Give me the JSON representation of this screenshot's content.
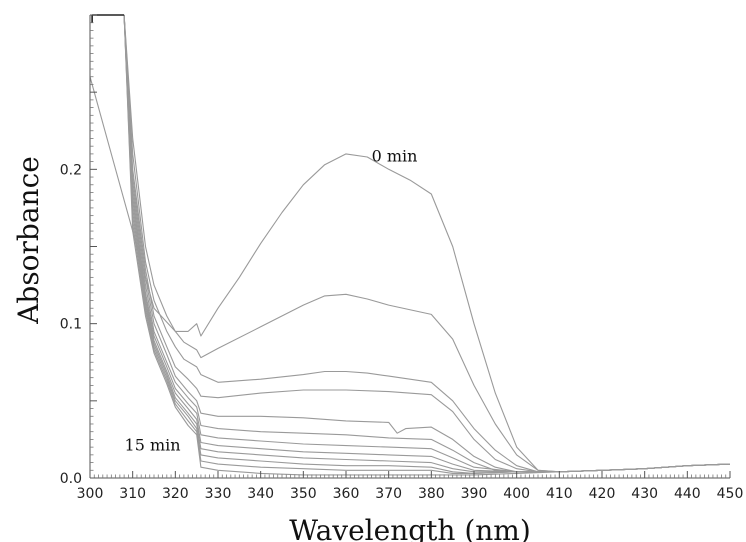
{
  "chart_data": {
    "type": "line",
    "title": "",
    "xlabel": "Wavelength (nm)",
    "ylabel": "Absorbance",
    "xlim": [
      300,
      450
    ],
    "ylim": [
      0,
      0.3
    ],
    "xticks": [
      "300",
      "310",
      "320",
      "330",
      "340",
      "350",
      "360",
      "370",
      "380",
      "390",
      "400",
      "410",
      "420",
      "430",
      "440",
      "450"
    ],
    "yticks": [
      "0.0",
      "0.1",
      "0.2"
    ],
    "grid": false,
    "legend": "none",
    "annotations": [
      {
        "text": "0 min",
        "x": 366,
        "y": 0.205
      },
      {
        "text": "15 min",
        "x": 302,
        "y": 0.021
      }
    ],
    "series": [
      {
        "label": "0 min",
        "points": [
          [
            300,
            0.26
          ],
          [
            305,
            0.21
          ],
          [
            310,
            0.16
          ],
          [
            315,
            0.11
          ],
          [
            320,
            0.095
          ],
          [
            323,
            0.095
          ],
          [
            325,
            0.1
          ],
          [
            326,
            0.092
          ],
          [
            330,
            0.11
          ],
          [
            335,
            0.13
          ],
          [
            340,
            0.152
          ],
          [
            345,
            0.172
          ],
          [
            350,
            0.19
          ],
          [
            355,
            0.203
          ],
          [
            360,
            0.21
          ],
          [
            365,
            0.208
          ],
          [
            370,
            0.2
          ],
          [
            375,
            0.193
          ],
          [
            380,
            0.184
          ],
          [
            385,
            0.15
          ],
          [
            390,
            0.1
          ],
          [
            395,
            0.055
          ],
          [
            400,
            0.02
          ],
          [
            405,
            0.005
          ],
          [
            410,
            0.004
          ],
          [
            420,
            0.005
          ],
          [
            430,
            0.006
          ],
          [
            440,
            0.008
          ],
          [
            450,
            0.009
          ]
        ]
      },
      {
        "points": [
          [
            308,
            0.3
          ],
          [
            310,
            0.22
          ],
          [
            313,
            0.15
          ],
          [
            315,
            0.125
          ],
          [
            318,
            0.105
          ],
          [
            320,
            0.095
          ],
          [
            322,
            0.088
          ],
          [
            325,
            0.083
          ],
          [
            326,
            0.078
          ],
          [
            330,
            0.084
          ],
          [
            340,
            0.098
          ],
          [
            350,
            0.112
          ],
          [
            355,
            0.118
          ],
          [
            360,
            0.119
          ],
          [
            365,
            0.116
          ],
          [
            370,
            0.112
          ],
          [
            380,
            0.106
          ],
          [
            385,
            0.09
          ],
          [
            390,
            0.06
          ],
          [
            395,
            0.035
          ],
          [
            400,
            0.015
          ],
          [
            405,
            0.005
          ],
          [
            410,
            0.004
          ],
          [
            420,
            0.005
          ],
          [
            430,
            0.006
          ],
          [
            440,
            0.008
          ],
          [
            450,
            0.009
          ]
        ]
      },
      {
        "points": [
          [
            308,
            0.3
          ],
          [
            310,
            0.21
          ],
          [
            313,
            0.14
          ],
          [
            315,
            0.115
          ],
          [
            318,
            0.095
          ],
          [
            320,
            0.085
          ],
          [
            322,
            0.077
          ],
          [
            325,
            0.072
          ],
          [
            326,
            0.067
          ],
          [
            330,
            0.062
          ],
          [
            340,
            0.064
          ],
          [
            350,
            0.067
          ],
          [
            355,
            0.069
          ],
          [
            360,
            0.069
          ],
          [
            365,
            0.068
          ],
          [
            370,
            0.066
          ],
          [
            380,
            0.062
          ],
          [
            385,
            0.05
          ],
          [
            390,
            0.032
          ],
          [
            395,
            0.018
          ],
          [
            400,
            0.008
          ],
          [
            405,
            0.004
          ],
          [
            410,
            0.004
          ],
          [
            420,
            0.005
          ],
          [
            430,
            0.006
          ],
          [
            440,
            0.008
          ],
          [
            450,
            0.009
          ]
        ]
      },
      {
        "points": [
          [
            308,
            0.3
          ],
          [
            310,
            0.2
          ],
          [
            313,
            0.135
          ],
          [
            315,
            0.105
          ],
          [
            318,
            0.085
          ],
          [
            320,
            0.072
          ],
          [
            323,
            0.064
          ],
          [
            325,
            0.058
          ],
          [
            326,
            0.053
          ],
          [
            330,
            0.052
          ],
          [
            340,
            0.055
          ],
          [
            350,
            0.057
          ],
          [
            360,
            0.057
          ],
          [
            370,
            0.056
          ],
          [
            380,
            0.054
          ],
          [
            385,
            0.043
          ],
          [
            390,
            0.025
          ],
          [
            395,
            0.012
          ],
          [
            400,
            0.006
          ],
          [
            405,
            0.004
          ],
          [
            410,
            0.004
          ],
          [
            420,
            0.005
          ],
          [
            430,
            0.006
          ],
          [
            440,
            0.008
          ],
          [
            450,
            0.009
          ]
        ]
      },
      {
        "points": [
          [
            308,
            0.3
          ],
          [
            310,
            0.195
          ],
          [
            313,
            0.13
          ],
          [
            315,
            0.1
          ],
          [
            318,
            0.08
          ],
          [
            320,
            0.066
          ],
          [
            323,
            0.056
          ],
          [
            325,
            0.05
          ],
          [
            326,
            0.042
          ],
          [
            330,
            0.04
          ],
          [
            340,
            0.04
          ],
          [
            350,
            0.039
          ],
          [
            360,
            0.037
          ],
          [
            370,
            0.036
          ],
          [
            372,
            0.029
          ],
          [
            374,
            0.032
          ],
          [
            380,
            0.033
          ],
          [
            385,
            0.025
          ],
          [
            390,
            0.014
          ],
          [
            395,
            0.007
          ],
          [
            400,
            0.004
          ],
          [
            410,
            0.004
          ],
          [
            420,
            0.005
          ],
          [
            430,
            0.006
          ],
          [
            440,
            0.008
          ],
          [
            450,
            0.009
          ]
        ]
      },
      {
        "points": [
          [
            308,
            0.3
          ],
          [
            310,
            0.19
          ],
          [
            313,
            0.125
          ],
          [
            315,
            0.095
          ],
          [
            318,
            0.075
          ],
          [
            320,
            0.062
          ],
          [
            323,
            0.052
          ],
          [
            325,
            0.046
          ],
          [
            326,
            0.034
          ],
          [
            330,
            0.032
          ],
          [
            340,
            0.03
          ],
          [
            350,
            0.029
          ],
          [
            360,
            0.028
          ],
          [
            370,
            0.026
          ],
          [
            380,
            0.025
          ],
          [
            385,
            0.018
          ],
          [
            390,
            0.01
          ],
          [
            395,
            0.005
          ],
          [
            400,
            0.004
          ],
          [
            410,
            0.004
          ],
          [
            420,
            0.005
          ],
          [
            430,
            0.006
          ],
          [
            440,
            0.008
          ],
          [
            450,
            0.009
          ]
        ]
      },
      {
        "points": [
          [
            308,
            0.3
          ],
          [
            310,
            0.185
          ],
          [
            313,
            0.12
          ],
          [
            315,
            0.092
          ],
          [
            318,
            0.072
          ],
          [
            320,
            0.058
          ],
          [
            323,
            0.048
          ],
          [
            325,
            0.042
          ],
          [
            326,
            0.028
          ],
          [
            330,
            0.026
          ],
          [
            340,
            0.024
          ],
          [
            350,
            0.022
          ],
          [
            360,
            0.021
          ],
          [
            370,
            0.02
          ],
          [
            380,
            0.019
          ],
          [
            385,
            0.013
          ],
          [
            390,
            0.007
          ],
          [
            400,
            0.004
          ],
          [
            410,
            0.004
          ],
          [
            420,
            0.005
          ],
          [
            430,
            0.006
          ],
          [
            440,
            0.008
          ],
          [
            450,
            0.009
          ]
        ]
      },
      {
        "points": [
          [
            308,
            0.3
          ],
          [
            310,
            0.18
          ],
          [
            313,
            0.117
          ],
          [
            315,
            0.089
          ],
          [
            318,
            0.069
          ],
          [
            320,
            0.055
          ],
          [
            323,
            0.045
          ],
          [
            325,
            0.038
          ],
          [
            326,
            0.023
          ],
          [
            330,
            0.021
          ],
          [
            340,
            0.019
          ],
          [
            350,
            0.017
          ],
          [
            360,
            0.016
          ],
          [
            370,
            0.015
          ],
          [
            380,
            0.014
          ],
          [
            385,
            0.009
          ],
          [
            390,
            0.005
          ],
          [
            400,
            0.004
          ],
          [
            410,
            0.004
          ],
          [
            420,
            0.005
          ],
          [
            430,
            0.006
          ],
          [
            440,
            0.008
          ],
          [
            450,
            0.009
          ]
        ]
      },
      {
        "points": [
          [
            308,
            0.3
          ],
          [
            310,
            0.175
          ],
          [
            313,
            0.114
          ],
          [
            315,
            0.087
          ],
          [
            318,
            0.067
          ],
          [
            320,
            0.052
          ],
          [
            323,
            0.042
          ],
          [
            325,
            0.035
          ],
          [
            326,
            0.019
          ],
          [
            330,
            0.017
          ],
          [
            340,
            0.015
          ],
          [
            350,
            0.013
          ],
          [
            360,
            0.012
          ],
          [
            370,
            0.011
          ],
          [
            380,
            0.01
          ],
          [
            385,
            0.006
          ],
          [
            390,
            0.004
          ],
          [
            400,
            0.004
          ],
          [
            410,
            0.004
          ],
          [
            420,
            0.005
          ],
          [
            430,
            0.006
          ],
          [
            440,
            0.008
          ],
          [
            450,
            0.009
          ]
        ]
      },
      {
        "points": [
          [
            308,
            0.3
          ],
          [
            310,
            0.17
          ],
          [
            313,
            0.111
          ],
          [
            315,
            0.085
          ],
          [
            318,
            0.065
          ],
          [
            320,
            0.05
          ],
          [
            323,
            0.04
          ],
          [
            325,
            0.032
          ],
          [
            326,
            0.015
          ],
          [
            330,
            0.013
          ],
          [
            340,
            0.011
          ],
          [
            350,
            0.009
          ],
          [
            360,
            0.008
          ],
          [
            370,
            0.008
          ],
          [
            380,
            0.007
          ],
          [
            385,
            0.004
          ],
          [
            390,
            0.003
          ],
          [
            400,
            0.004
          ],
          [
            410,
            0.004
          ],
          [
            420,
            0.005
          ],
          [
            430,
            0.006
          ],
          [
            440,
            0.008
          ],
          [
            450,
            0.009
          ]
        ]
      },
      {
        "points": [
          [
            308,
            0.3
          ],
          [
            310,
            0.165
          ],
          [
            313,
            0.108
          ],
          [
            315,
            0.083
          ],
          [
            318,
            0.063
          ],
          [
            320,
            0.048
          ],
          [
            323,
            0.037
          ],
          [
            325,
            0.03
          ],
          [
            326,
            0.011
          ],
          [
            330,
            0.009
          ],
          [
            340,
            0.007
          ],
          [
            350,
            0.006
          ],
          [
            360,
            0.005
          ],
          [
            370,
            0.005
          ],
          [
            380,
            0.005
          ],
          [
            385,
            0.003
          ],
          [
            390,
            0.003
          ],
          [
            400,
            0.004
          ],
          [
            410,
            0.004
          ],
          [
            420,
            0.005
          ],
          [
            430,
            0.006
          ],
          [
            440,
            0.008
          ],
          [
            450,
            0.009
          ]
        ]
      },
      {
        "label": "15 min",
        "points": [
          [
            308,
            0.3
          ],
          [
            310,
            0.16
          ],
          [
            313,
            0.105
          ],
          [
            315,
            0.081
          ],
          [
            318,
            0.061
          ],
          [
            320,
            0.046
          ],
          [
            323,
            0.034
          ],
          [
            325,
            0.028
          ],
          [
            326,
            0.007
          ],
          [
            330,
            0.005
          ],
          [
            340,
            0.003
          ],
          [
            350,
            0.002
          ],
          [
            360,
            0.002
          ],
          [
            370,
            0.002
          ],
          [
            380,
            0.002
          ],
          [
            390,
            0.002
          ],
          [
            400,
            0.003
          ],
          [
            410,
            0.004
          ],
          [
            420,
            0.005
          ],
          [
            430,
            0.006
          ],
          [
            440,
            0.008
          ],
          [
            450,
            0.009
          ]
        ]
      }
    ]
  }
}
